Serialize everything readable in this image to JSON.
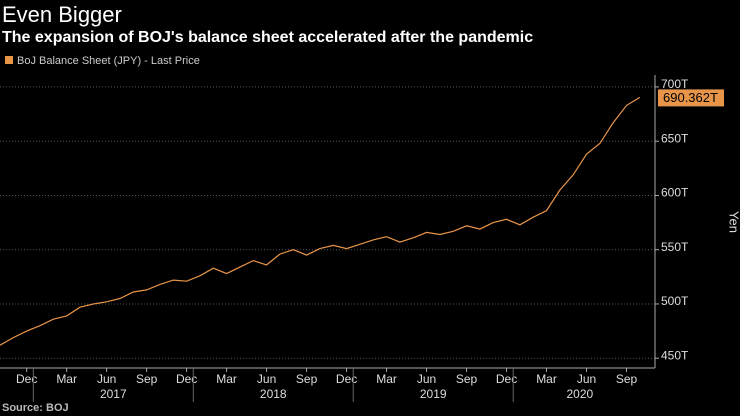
{
  "chart_data": {
    "type": "line",
    "title": "Even Bigger",
    "subtitle": "The expansion of BOJ's balance sheet accelerated after the pandemic",
    "y_label": "Yen",
    "source": "Source: BOJ",
    "x": [
      "2016-10",
      "2016-11",
      "2016-12",
      "2017-01",
      "2017-02",
      "2017-03",
      "2017-04",
      "2017-05",
      "2017-06",
      "2017-07",
      "2017-08",
      "2017-09",
      "2017-10",
      "2017-11",
      "2017-12",
      "2018-01",
      "2018-02",
      "2018-03",
      "2018-04",
      "2018-05",
      "2018-06",
      "2018-07",
      "2018-08",
      "2018-09",
      "2018-10",
      "2018-11",
      "2018-12",
      "2019-01",
      "2019-02",
      "2019-03",
      "2019-04",
      "2019-05",
      "2019-06",
      "2019-07",
      "2019-08",
      "2019-09",
      "2019-10",
      "2019-11",
      "2019-12",
      "2020-01",
      "2020-02",
      "2020-03",
      "2020-04",
      "2020-05",
      "2020-06",
      "2020-07",
      "2020-08",
      "2020-09",
      "2020-10"
    ],
    "series": [
      {
        "name": "BoJ Balance Sheet (JPY) - Last Price",
        "color": "#e8954a",
        "values": [
          462,
          469,
          475,
          480,
          486,
          489,
          497,
          500,
          502,
          505,
          511,
          513,
          518,
          522,
          521,
          526,
          533,
          528,
          534,
          540,
          536,
          546,
          550,
          545,
          551,
          554,
          551,
          555,
          559,
          562,
          557,
          561,
          566,
          564,
          567,
          572,
          569,
          575,
          578,
          573,
          580,
          586,
          605,
          619,
          638,
          648,
          667,
          683,
          690.362
        ],
        "last_label": "690.362T"
      }
    ],
    "ylim": [
      441,
      711
    ],
    "yticks": [
      {
        "value": 450,
        "label": "450T"
      },
      {
        "value": 500,
        "label": "500T"
      },
      {
        "value": 550,
        "label": "550T"
      },
      {
        "value": 600,
        "label": "600T"
      },
      {
        "value": 650,
        "label": "650T"
      },
      {
        "value": 700,
        "label": "700T"
      }
    ],
    "xticks": [
      {
        "value": "2016-12",
        "label": "Dec"
      },
      {
        "value": "2017-03",
        "label": "Mar"
      },
      {
        "value": "2017-06",
        "label": "Jun"
      },
      {
        "value": "2017-09",
        "label": "Sep"
      },
      {
        "value": "2017-12",
        "label": "Dec"
      },
      {
        "value": "2018-03",
        "label": "Mar"
      },
      {
        "value": "2018-06",
        "label": "Jun"
      },
      {
        "value": "2018-09",
        "label": "Sep"
      },
      {
        "value": "2018-12",
        "label": "Dec"
      },
      {
        "value": "2019-03",
        "label": "Mar"
      },
      {
        "value": "2019-06",
        "label": "Jun"
      },
      {
        "value": "2019-09",
        "label": "Sep"
      },
      {
        "value": "2019-12",
        "label": "Dec"
      },
      {
        "value": "2020-03",
        "label": "Mar"
      },
      {
        "value": "2020-06",
        "label": "Jun"
      },
      {
        "value": "2020-09",
        "label": "Sep"
      }
    ],
    "year_ticks": [
      "2017",
      "2018",
      "2019",
      "2020"
    ],
    "grid": true
  }
}
